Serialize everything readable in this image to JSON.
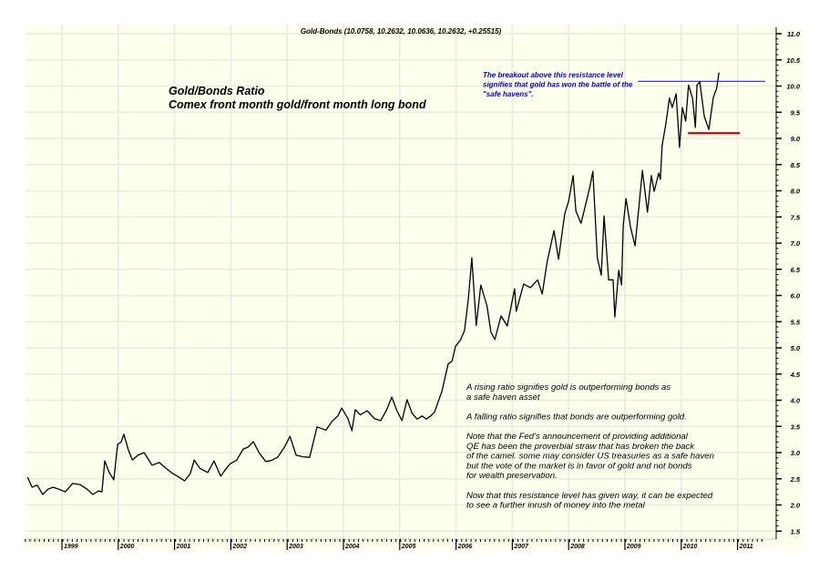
{
  "chart_data": {
    "type": "line",
    "title": "Gold-Bonds (10.0758, 10.2632, 10.0636, 10.2632, +0.25515)",
    "heading": [
      "Gold/Bonds Ratio",
      "Comex front month gold/front month long bond"
    ],
    "xlabel": "",
    "ylabel": "",
    "ylim": [
      1.5,
      11.0
    ],
    "xlim": [
      1998.35,
      2011.65
    ],
    "yticks": [
      "11.0",
      "10.5",
      "10.0",
      "9.5",
      "9.0",
      "8.5",
      "8.0",
      "7.5",
      "7.0",
      "6.5",
      "6.0",
      "5.5",
      "5.0",
      "4.5",
      "4.0",
      "3.5",
      "3.0",
      "2.5",
      "2.0",
      "1.5"
    ],
    "xticks": [
      "1999",
      "2000",
      "2001",
      "2002",
      "2003",
      "2004",
      "2005",
      "2006",
      "2007",
      "2008",
      "2009",
      "2010",
      "2011"
    ],
    "grid": true,
    "y_axis_side": "right",
    "colors": {
      "background": "#ffffee",
      "grid": "#ece9e0",
      "series": "#000000",
      "resistance": "#2222cc",
      "support": "#cc0000",
      "annotation": "#0000cc"
    },
    "series": [
      {
        "points": [
          [
            1998.39,
            2.53
          ],
          [
            1998.47,
            2.34
          ],
          [
            1998.56,
            2.38
          ],
          [
            1998.66,
            2.2
          ],
          [
            1998.75,
            2.3
          ],
          [
            1998.84,
            2.34
          ],
          [
            1998.95,
            2.3
          ],
          [
            1999.06,
            2.25
          ],
          [
            1999.19,
            2.41
          ],
          [
            1999.32,
            2.39
          ],
          [
            1999.45,
            2.3
          ],
          [
            1999.55,
            2.2
          ],
          [
            1999.65,
            2.27
          ],
          [
            1999.71,
            2.25
          ],
          [
            1999.76,
            2.84
          ],
          [
            1999.84,
            2.62
          ],
          [
            1999.92,
            2.48
          ],
          [
            1999.99,
            3.16
          ],
          [
            2000.05,
            3.2
          ],
          [
            2000.1,
            3.35
          ],
          [
            2000.18,
            3.05
          ],
          [
            2000.25,
            2.86
          ],
          [
            2000.35,
            2.95
          ],
          [
            2000.46,
            3.0
          ],
          [
            2000.6,
            2.76
          ],
          [
            2000.73,
            2.81
          ],
          [
            2000.85,
            2.7
          ],
          [
            2000.94,
            2.62
          ],
          [
            2001.05,
            2.55
          ],
          [
            2001.18,
            2.46
          ],
          [
            2001.28,
            2.6
          ],
          [
            2001.35,
            2.86
          ],
          [
            2001.45,
            2.7
          ],
          [
            2001.59,
            2.62
          ],
          [
            2001.7,
            2.84
          ],
          [
            2001.82,
            2.55
          ],
          [
            2001.92,
            2.7
          ],
          [
            2001.99,
            2.79
          ],
          [
            2002.1,
            2.85
          ],
          [
            2002.22,
            3.07
          ],
          [
            2002.3,
            3.1
          ],
          [
            2002.4,
            3.21
          ],
          [
            2002.5,
            3.0
          ],
          [
            2002.62,
            2.83
          ],
          [
            2002.72,
            2.85
          ],
          [
            2002.83,
            2.91
          ],
          [
            2002.95,
            3.1
          ],
          [
            2003.05,
            3.31
          ],
          [
            2003.16,
            2.95
          ],
          [
            2003.28,
            2.92
          ],
          [
            2003.4,
            2.91
          ],
          [
            2003.53,
            3.49
          ],
          [
            2003.69,
            3.43
          ],
          [
            2003.8,
            3.6
          ],
          [
            2003.9,
            3.7
          ],
          [
            2003.97,
            3.85
          ],
          [
            2004.08,
            3.65
          ],
          [
            2004.15,
            3.42
          ],
          [
            2004.21,
            3.82
          ],
          [
            2004.3,
            3.72
          ],
          [
            2004.42,
            3.8
          ],
          [
            2004.55,
            3.65
          ],
          [
            2004.66,
            3.61
          ],
          [
            2004.76,
            3.8
          ],
          [
            2004.86,
            4.06
          ],
          [
            2004.95,
            3.8
          ],
          [
            2005.04,
            3.61
          ],
          [
            2005.13,
            4.01
          ],
          [
            2005.22,
            3.75
          ],
          [
            2005.31,
            3.64
          ],
          [
            2005.4,
            3.7
          ],
          [
            2005.47,
            3.64
          ],
          [
            2005.55,
            3.7
          ],
          [
            2005.62,
            3.78
          ],
          [
            2005.75,
            4.17
          ],
          [
            2005.86,
            4.69
          ],
          [
            2005.93,
            4.75
          ],
          [
            2005.99,
            5.03
          ],
          [
            2006.08,
            5.15
          ],
          [
            2006.15,
            5.33
          ],
          [
            2006.22,
            5.95
          ],
          [
            2006.28,
            6.72
          ],
          [
            2006.36,
            5.43
          ],
          [
            2006.44,
            6.2
          ],
          [
            2006.55,
            5.8
          ],
          [
            2006.62,
            5.3
          ],
          [
            2006.69,
            5.16
          ],
          [
            2006.8,
            5.61
          ],
          [
            2006.91,
            5.42
          ],
          [
            2007.04,
            6.13
          ],
          [
            2007.07,
            5.7
          ],
          [
            2007.2,
            6.22
          ],
          [
            2007.32,
            6.15
          ],
          [
            2007.45,
            6.3
          ],
          [
            2007.53,
            6.03
          ],
          [
            2007.62,
            6.65
          ],
          [
            2007.74,
            7.24
          ],
          [
            2007.82,
            6.69
          ],
          [
            2007.93,
            7.56
          ],
          [
            2008.0,
            7.8
          ],
          [
            2008.08,
            8.29
          ],
          [
            2008.13,
            7.61
          ],
          [
            2008.22,
            7.38
          ],
          [
            2008.37,
            8.04
          ],
          [
            2008.43,
            8.37
          ],
          [
            2008.51,
            6.72
          ],
          [
            2008.58,
            6.39
          ],
          [
            2008.63,
            7.52
          ],
          [
            2008.71,
            6.3
          ],
          [
            2008.79,
            6.3
          ],
          [
            2008.82,
            5.59
          ],
          [
            2008.89,
            6.48
          ],
          [
            2008.94,
            6.2
          ],
          [
            2008.97,
            7.33
          ],
          [
            2009.02,
            7.85
          ],
          [
            2009.1,
            7.3
          ],
          [
            2009.18,
            6.95
          ],
          [
            2009.24,
            7.6
          ],
          [
            2009.31,
            8.39
          ],
          [
            2009.4,
            7.59
          ],
          [
            2009.47,
            8.29
          ],
          [
            2009.52,
            7.99
          ],
          [
            2009.6,
            8.34
          ],
          [
            2009.63,
            8.22
          ],
          [
            2009.66,
            8.86
          ],
          [
            2009.73,
            9.3
          ],
          [
            2009.79,
            9.77
          ],
          [
            2009.84,
            9.59
          ],
          [
            2009.91,
            9.85
          ],
          [
            2009.97,
            8.83
          ],
          [
            2010.02,
            9.59
          ],
          [
            2010.08,
            9.33
          ],
          [
            2010.13,
            10.02
          ],
          [
            2010.2,
            9.77
          ],
          [
            2010.25,
            9.21
          ],
          [
            2010.28,
            10.02
          ],
          [
            2010.33,
            10.08
          ],
          [
            2010.41,
            9.42
          ],
          [
            2010.49,
            9.17
          ],
          [
            2010.57,
            9.78
          ],
          [
            2010.63,
            9.96
          ],
          [
            2010.67,
            10.26
          ]
        ]
      }
    ],
    "lines": [
      {
        "kind": "resistance",
        "value": 10.09,
        "from": 2009.23,
        "to": 2011.49
      },
      {
        "kind": "support",
        "value": 9.1,
        "from": 2010.12,
        "to": 2011.04
      }
    ],
    "annotations": {
      "breakout": [
        "The breakout above this resistance level",
        "signifies that gold has won the battle of the",
        "\"safe havens\"."
      ],
      "notes": [
        "A rising ratio signifies gold is outperforming bonds as",
        "a safe haven asset",
        "",
        "A falling ratio signifies that bonds are outperforming gold.",
        "",
        "Note that the Fed's announcement of providing additional",
        "QE has been the proverbial straw that has broken the back",
        "of the camel. some may consider US treasuries as a safe haven",
        "but the vote of the market is in favor of gold and not bonds",
        "for wealth preservation.",
        "",
        "Now that this resistance level has given way, it can be expected",
        "to see a further inrush of money into the metal"
      ]
    }
  }
}
